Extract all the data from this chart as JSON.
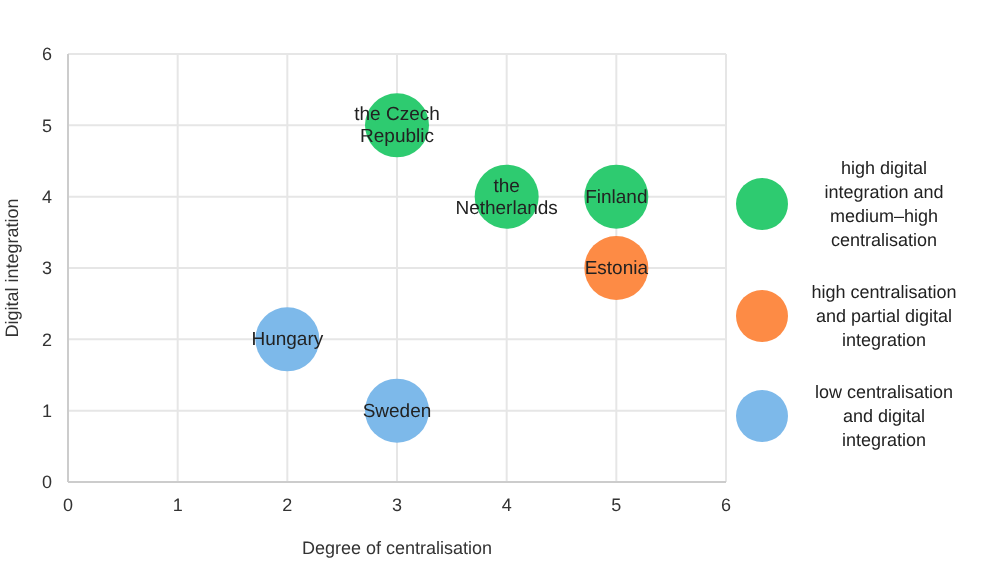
{
  "chart_data": {
    "type": "scatter",
    "xlabel": "Degree of centralisation",
    "ylabel": "Digital integration",
    "xlim": [
      0,
      6
    ],
    "xticks": [
      0,
      1,
      2,
      3,
      4,
      5,
      6
    ],
    "ylim": [
      0,
      6
    ],
    "yticks": [
      0,
      1,
      2,
      3,
      4,
      5,
      6
    ],
    "grid": true,
    "legend": "right",
    "marker": "circle",
    "series": [
      {
        "name": "high digital integration and medium–high centralisation",
        "color": "#2ecb70",
        "x": [
          3,
          4,
          5
        ],
        "values": [
          5,
          4,
          4
        ]
      },
      {
        "name": "high centralisation and partial digital integration",
        "color": "#fd8b45",
        "x": [
          5
        ],
        "values": [
          3
        ]
      },
      {
        "name": "low centralisation and digital integration",
        "color": "#7db9ea",
        "x": [
          2,
          3
        ],
        "values": [
          2,
          1
        ]
      }
    ],
    "annotations": [
      {
        "text": "the Czech Republic",
        "x": 3,
        "y": 5
      },
      {
        "text": "the Netherlands",
        "x": 4,
        "y": 4
      },
      {
        "text": "Finland",
        "x": 5,
        "y": 4
      },
      {
        "text": "Estonia",
        "x": 5,
        "y": 3
      },
      {
        "text": "Hungary",
        "x": 2,
        "y": 2
      },
      {
        "text": "Sweden",
        "x": 3,
        "y": 1
      }
    ]
  }
}
